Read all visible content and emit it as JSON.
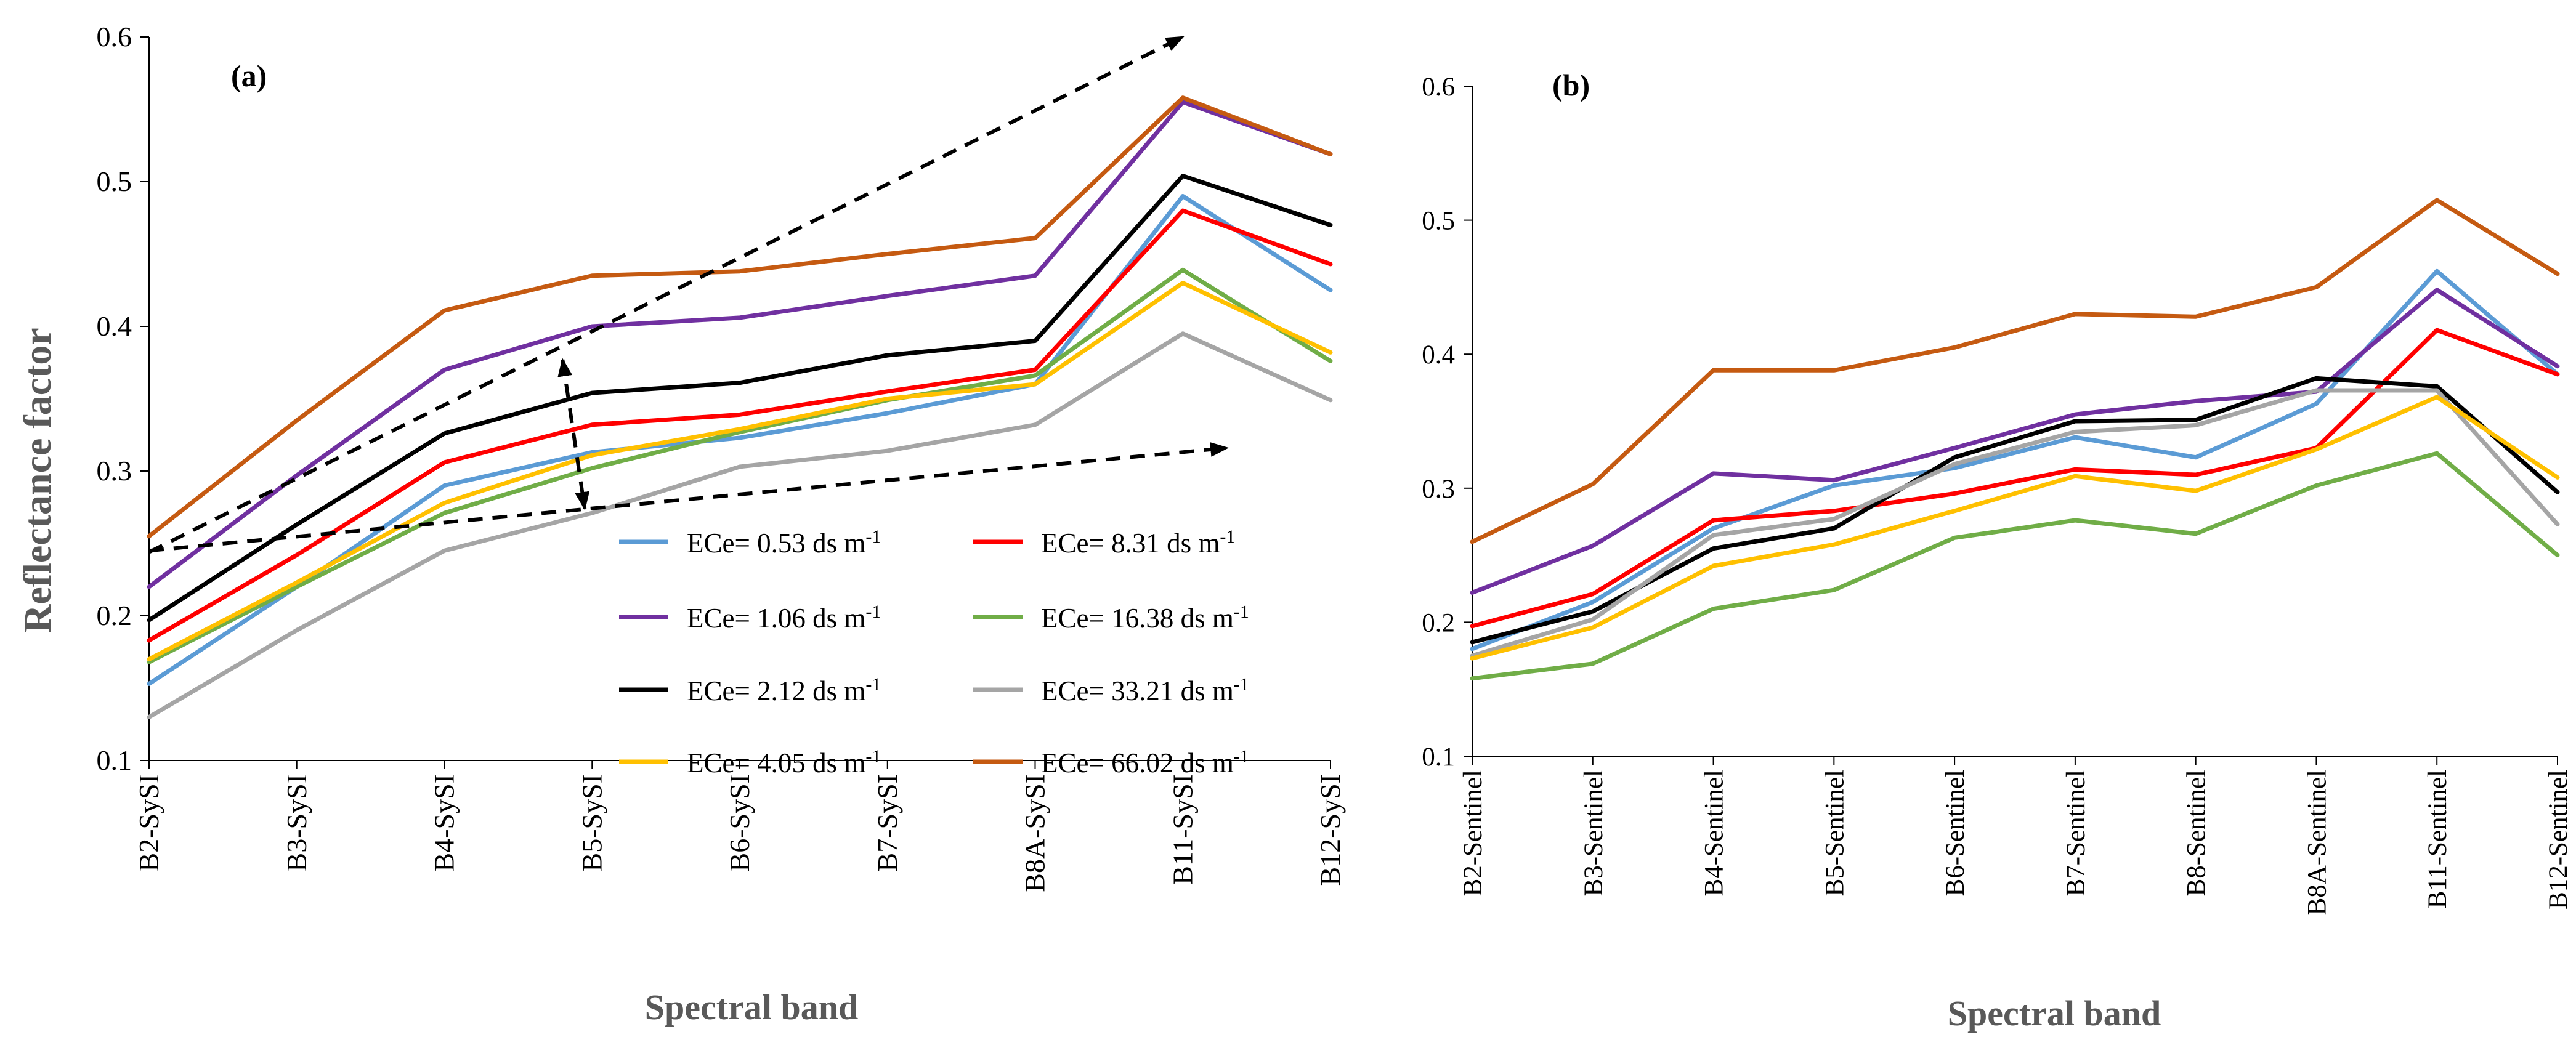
{
  "figure": {
    "shared_ylabel": "Reflectance factor",
    "legend": {
      "unit_prefix": "ds m",
      "unit_exp": "-1",
      "entries": [
        {
          "label": "ECe= 0.53",
          "color": "#5b9bd5"
        },
        {
          "label": "ECe= 8.31",
          "color": "#ff0000"
        },
        {
          "label": "ECe= 1.06",
          "color": "#7030a0"
        },
        {
          "label": "ECe= 16.38",
          "color": "#70ad47"
        },
        {
          "label": "ECe= 2.12",
          "color": "#000000"
        },
        {
          "label": "ECe= 33.21",
          "color": "#a5a5a5"
        },
        {
          "label": "ECe= 4.05",
          "color": "#ffc000"
        },
        {
          "label": "ECe= 66.02",
          "color": "#c55a11"
        }
      ]
    },
    "arrow_color": "#000000"
  },
  "chart_data": [
    {
      "type": "line",
      "panel_label": "(a)",
      "xlabel": "Spectral band",
      "ylabel": "Reflectance factor",
      "ylim": [
        0.1,
        0.6
      ],
      "yticks": [
        "0.1",
        "0.2",
        "0.3",
        "0.4",
        "0.5",
        "0.6"
      ],
      "categories": [
        "B2-SySI",
        "B3-SySI",
        "B4-SySI",
        "B5-SySI",
        "B6-SySI",
        "B7-SySI",
        "B8A-SySI",
        "B11-SySI",
        "B12-SySI"
      ],
      "series": [
        {
          "name": "ECe= 0.53 ds m-1",
          "color": "#5b9bd5",
          "values": [
            0.153,
            0.22,
            0.29,
            0.313,
            0.323,
            0.34,
            0.36,
            0.49,
            0.425
          ]
        },
        {
          "name": "ECe= 8.31 ds m-1",
          "color": "#ff0000",
          "values": [
            0.183,
            0.242,
            0.306,
            0.332,
            0.339,
            0.355,
            0.37,
            0.48,
            0.443
          ]
        },
        {
          "name": "ECe= 1.06 ds m-1",
          "color": "#7030a0",
          "values": [
            0.22,
            0.297,
            0.37,
            0.4,
            0.406,
            0.421,
            0.435,
            0.555,
            0.519
          ]
        },
        {
          "name": "ECe= 16.38 ds m-1",
          "color": "#70ad47",
          "values": [
            0.168,
            0.22,
            0.271,
            0.302,
            0.327,
            0.349,
            0.366,
            0.439,
            0.376
          ]
        },
        {
          "name": "ECe= 2.12 ds m-1",
          "color": "#000000",
          "values": [
            0.197,
            0.263,
            0.326,
            0.354,
            0.361,
            0.38,
            0.39,
            0.504,
            0.47
          ]
        },
        {
          "name": "ECe= 33.21 ds m-1",
          "color": "#a5a5a5",
          "values": [
            0.13,
            0.19,
            0.245,
            0.271,
            0.303,
            0.314,
            0.332,
            0.395,
            0.349
          ]
        },
        {
          "name": "ECe= 4.05 ds m-1",
          "color": "#ffc000",
          "values": [
            0.17,
            0.223,
            0.278,
            0.311,
            0.329,
            0.35,
            0.36,
            0.43,
            0.382
          ]
        },
        {
          "name": "ECe= 66.02 ds m-1",
          "color": "#c55a11",
          "values": [
            0.255,
            0.335,
            0.411,
            0.435,
            0.438,
            0.45,
            0.461,
            0.558,
            0.519
          ]
        }
      ],
      "annotations": [
        {
          "type": "dashed-arrow",
          "from": [
            0,
            0.244
          ],
          "to": [
            7,
            0.6
          ]
        },
        {
          "type": "dashed-arrow",
          "from": [
            0,
            0.245
          ],
          "to": [
            7.3,
            0.316
          ]
        },
        {
          "type": "dashed-double-arrow",
          "from": [
            2.8,
            0.377
          ],
          "to": [
            2.95,
            0.274
          ]
        }
      ]
    },
    {
      "type": "line",
      "panel_label": "(b)",
      "xlabel": "Spectral band",
      "ylabel": "",
      "ylim": [
        0.1,
        0.6
      ],
      "yticks": [
        "0.1",
        "0.2",
        "0.3",
        "0.4",
        "0.5",
        "0.6"
      ],
      "categories": [
        "B2-Sentinel",
        "B3-Sentinel",
        "B4-Sentinel",
        "B5-Sentinel",
        "B6-Sentinel",
        "B7-Sentinel",
        "B8-Sentinel",
        "B8A-Sentinel",
        "B11-Sentinel",
        "B12-Sentinel"
      ],
      "series": [
        {
          "name": "ECe= 0.53 ds m-1",
          "color": "#5b9bd5",
          "values": [
            0.18,
            0.215,
            0.27,
            0.302,
            0.315,
            0.338,
            0.323,
            0.363,
            0.462,
            0.385
          ]
        },
        {
          "name": "ECe= 8.31 ds m-1",
          "color": "#ff0000",
          "values": [
            0.197,
            0.221,
            0.276,
            0.283,
            0.296,
            0.314,
            0.31,
            0.33,
            0.418,
            0.385
          ]
        },
        {
          "name": "ECe= 1.06 ds m-1",
          "color": "#7030a0",
          "values": [
            0.222,
            0.257,
            0.311,
            0.306,
            0.33,
            0.355,
            0.365,
            0.372,
            0.448,
            0.391
          ]
        },
        {
          "name": "ECe= 16.38 ds m-1",
          "color": "#70ad47",
          "values": [
            0.158,
            0.169,
            0.21,
            0.224,
            0.263,
            0.276,
            0.266,
            0.302,
            0.326,
            0.25
          ]
        },
        {
          "name": "ECe= 2.12 ds m-1",
          "color": "#000000",
          "values": [
            0.185,
            0.208,
            0.255,
            0.27,
            0.323,
            0.35,
            0.351,
            0.382,
            0.376,
            0.297
          ]
        },
        {
          "name": "ECe= 33.21 ds m-1",
          "color": "#a5a5a5",
          "values": [
            0.175,
            0.202,
            0.265,
            0.277,
            0.318,
            0.342,
            0.347,
            0.373,
            0.373,
            0.273
          ]
        },
        {
          "name": "ECe= 4.05 ds m-1",
          "color": "#ffc000",
          "values": [
            0.173,
            0.196,
            0.242,
            0.258,
            0.283,
            0.309,
            0.298,
            0.329,
            0.368,
            0.308
          ]
        },
        {
          "name": "ECe= 66.02 ds m-1",
          "color": "#c55a11",
          "values": [
            0.26,
            0.303,
            0.388,
            0.388,
            0.405,
            0.43,
            0.428,
            0.45,
            0.515,
            0.46
          ]
        }
      ]
    }
  ]
}
